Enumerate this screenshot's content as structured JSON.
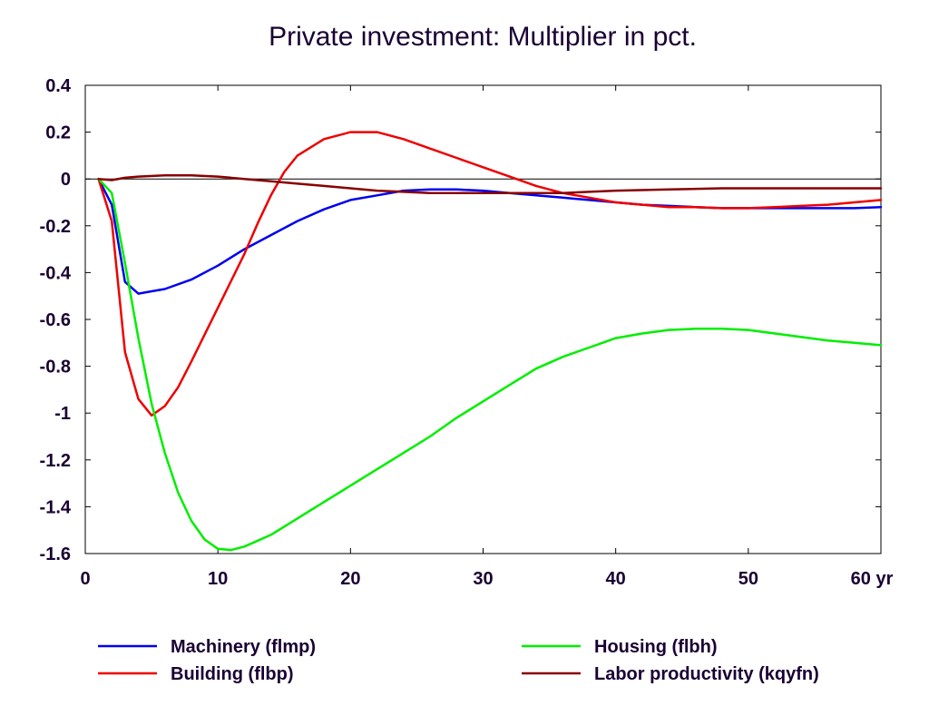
{
  "chart_data": {
    "type": "line",
    "title": "Private investment: Multiplier in pct.",
    "xlabel": "",
    "ylabel": "",
    "x_unit": "yr",
    "xlim": [
      0,
      60
    ],
    "ylim": [
      -1.6,
      0.4
    ],
    "xticks": [
      0,
      10,
      20,
      30,
      40,
      50,
      60
    ],
    "yticks": [
      0.4,
      0.2,
      0,
      -0.2,
      -0.4,
      -0.6,
      -0.8,
      -1,
      -1.2,
      -1.4,
      -1.6
    ],
    "grid": false,
    "zero_line": true,
    "legend_position": "bottom",
    "series": [
      {
        "name": "Machinery (flmp)",
        "color": "#0000ee",
        "x": [
          1,
          2,
          3,
          4,
          5,
          6,
          8,
          10,
          12,
          14,
          16,
          18,
          20,
          22,
          24,
          26,
          28,
          30,
          32,
          34,
          36,
          38,
          40,
          42,
          44,
          46,
          48,
          50,
          52,
          54,
          56,
          58,
          60
        ],
        "y": [
          0,
          -0.11,
          -0.44,
          -0.49,
          -0.48,
          -0.47,
          -0.43,
          -0.37,
          -0.3,
          -0.24,
          -0.18,
          -0.13,
          -0.09,
          -0.07,
          -0.05,
          -0.045,
          -0.045,
          -0.05,
          -0.06,
          -0.07,
          -0.08,
          -0.09,
          -0.1,
          -0.11,
          -0.115,
          -0.12,
          -0.125,
          -0.125,
          -0.125,
          -0.125,
          -0.125,
          -0.125,
          -0.12
        ]
      },
      {
        "name": "Building (flbp)",
        "color": "#ee0000",
        "x": [
          1,
          2,
          3,
          4,
          5,
          6,
          7,
          8,
          10,
          12,
          13,
          14,
          15,
          16,
          18,
          20,
          21,
          22,
          24,
          26,
          28,
          30,
          32,
          34,
          36,
          38,
          40,
          42,
          44,
          46,
          48,
          50,
          52,
          54,
          56,
          58,
          60
        ],
        "y": [
          0,
          -0.18,
          -0.74,
          -0.94,
          -1.01,
          -0.97,
          -0.89,
          -0.78,
          -0.55,
          -0.32,
          -0.19,
          -0.07,
          0.03,
          0.1,
          0.17,
          0.2,
          0.2,
          0.2,
          0.17,
          0.13,
          0.09,
          0.05,
          0.01,
          -0.03,
          -0.06,
          -0.08,
          -0.1,
          -0.11,
          -0.12,
          -0.12,
          -0.125,
          -0.125,
          -0.12,
          -0.115,
          -0.11,
          -0.1,
          -0.09
        ]
      },
      {
        "name": "Housing (flbh)",
        "color": "#00ee00",
        "x": [
          1,
          2,
          3,
          4,
          5,
          6,
          7,
          8,
          9,
          10,
          11,
          12,
          14,
          16,
          18,
          20,
          22,
          24,
          26,
          28,
          30,
          32,
          34,
          36,
          38,
          40,
          42,
          44,
          46,
          48,
          50,
          52,
          54,
          56,
          58,
          60
        ],
        "y": [
          0,
          -0.06,
          -0.36,
          -0.68,
          -0.96,
          -1.17,
          -1.34,
          -1.46,
          -1.54,
          -1.58,
          -1.585,
          -1.57,
          -1.52,
          -1.45,
          -1.38,
          -1.31,
          -1.24,
          -1.17,
          -1.1,
          -1.02,
          -0.95,
          -0.88,
          -0.81,
          -0.76,
          -0.72,
          -0.68,
          -0.66,
          -0.645,
          -0.64,
          -0.64,
          -0.645,
          -0.66,
          -0.675,
          -0.69,
          -0.7,
          -0.71
        ]
      },
      {
        "name": "Labor productivity (kqyfn)",
        "color": "#880000",
        "x": [
          1,
          2,
          3,
          4,
          6,
          8,
          10,
          12,
          14,
          16,
          18,
          20,
          22,
          24,
          26,
          28,
          30,
          32,
          34,
          36,
          38,
          40,
          44,
          48,
          52,
          56,
          60
        ],
        "y": [
          0,
          -0.005,
          0.005,
          0.01,
          0.015,
          0.015,
          0.01,
          0.0,
          -0.01,
          -0.02,
          -0.03,
          -0.04,
          -0.05,
          -0.055,
          -0.06,
          -0.06,
          -0.06,
          -0.06,
          -0.06,
          -0.06,
          -0.055,
          -0.05,
          -0.045,
          -0.04,
          -0.04,
          -0.04,
          -0.04
        ]
      }
    ]
  }
}
